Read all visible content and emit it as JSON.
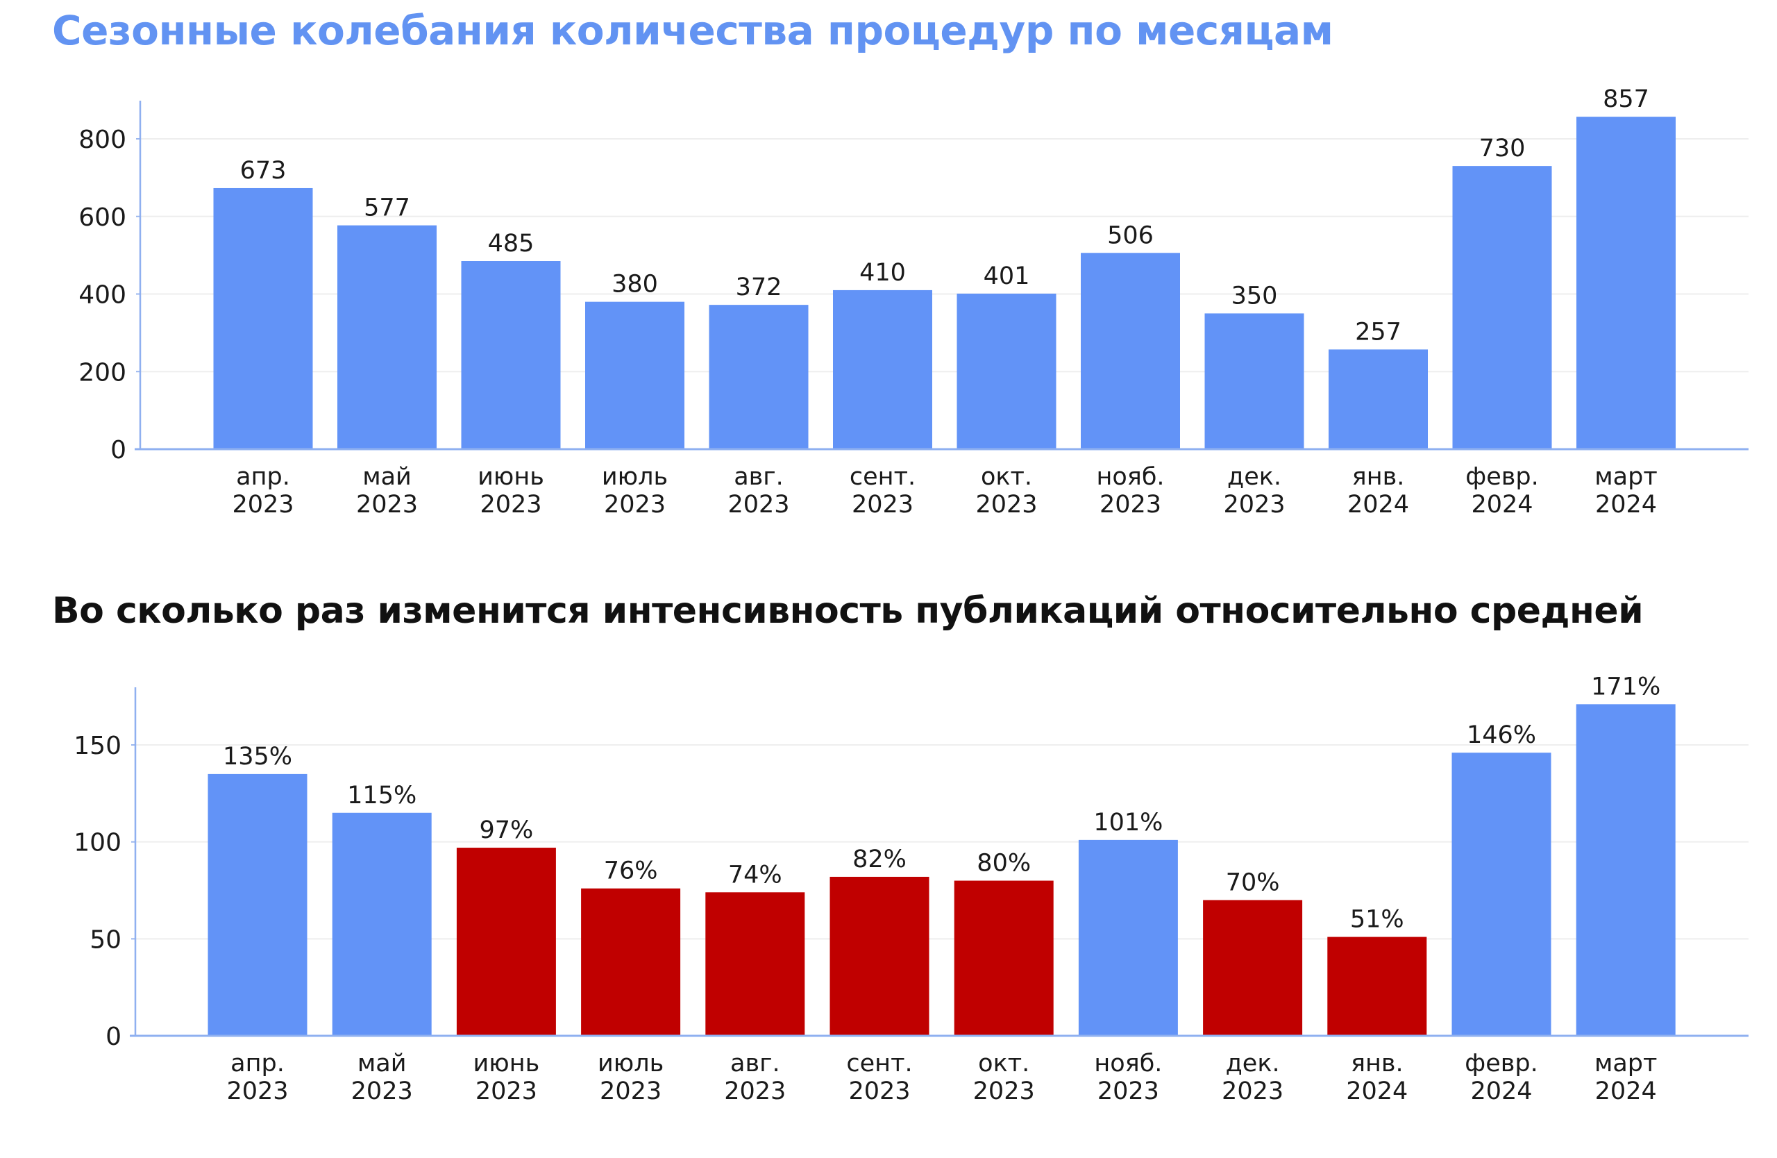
{
  "chart_data": [
    {
      "type": "bar",
      "title": "Сезонные колебания количества процедур по месяцам",
      "categories": [
        [
          "апр.",
          "2023"
        ],
        [
          "май",
          "2023"
        ],
        [
          "июнь",
          "2023"
        ],
        [
          "июль",
          "2023"
        ],
        [
          "авг.",
          "2023"
        ],
        [
          "сент.",
          "2023"
        ],
        [
          "окт.",
          "2023"
        ],
        [
          "нояб.",
          "2023"
        ],
        [
          "дек.",
          "2023"
        ],
        [
          "янв.",
          "2024"
        ],
        [
          "февр.",
          "2024"
        ],
        [
          "март",
          "2024"
        ]
      ],
      "values": [
        673,
        577,
        485,
        380,
        372,
        410,
        401,
        506,
        350,
        257,
        730,
        857
      ],
      "data_labels": [
        "673",
        "577",
        "485",
        "380",
        "372",
        "410",
        "401",
        "506",
        "350",
        "257",
        "730",
        "857"
      ],
      "yticks": [
        0,
        200,
        400,
        600,
        800
      ],
      "ylim": [
        0,
        900
      ],
      "grid": true,
      "colors": {
        "bar": "#6293f7"
      }
    },
    {
      "type": "bar",
      "title": "Во сколько раз изменится интенсивность публикаций относительно средней",
      "categories": [
        [
          "апр.",
          "2023"
        ],
        [
          "май",
          "2023"
        ],
        [
          "июнь",
          "2023"
        ],
        [
          "июль",
          "2023"
        ],
        [
          "авг.",
          "2023"
        ],
        [
          "сент.",
          "2023"
        ],
        [
          "окт.",
          "2023"
        ],
        [
          "нояб.",
          "2023"
        ],
        [
          "дек.",
          "2023"
        ],
        [
          "янв.",
          "2024"
        ],
        [
          "февр.",
          "2024"
        ],
        [
          "март",
          "2024"
        ]
      ],
      "values": [
        135,
        115,
        97,
        76,
        74,
        82,
        80,
        101,
        70,
        51,
        146,
        171
      ],
      "data_labels": [
        "135%",
        "115%",
        "97%",
        "76%",
        "74%",
        "82%",
        "80%",
        "101%",
        "70%",
        "51%",
        "146%",
        "171%"
      ],
      "yticks": [
        0,
        50,
        100,
        150
      ],
      "ylim": [
        0,
        180
      ],
      "grid": true,
      "colors": {
        "above_average": "#6293f7",
        "below_average": "#c00000"
      }
    }
  ]
}
